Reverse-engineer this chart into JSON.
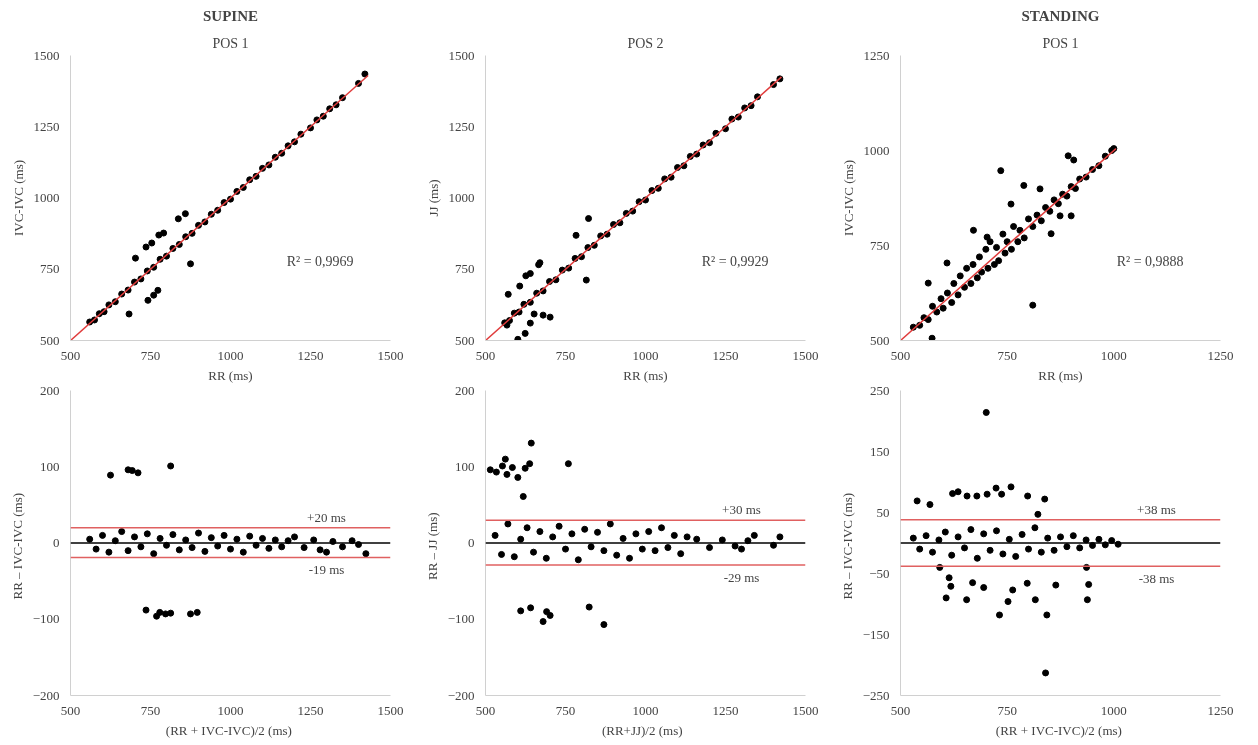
{
  "chart_data": [
    {
      "type": "scatter",
      "title": "SUPINE",
      "subtitle": "POS 1",
      "xlabel": "RR (ms)",
      "ylabel": "IVC-IVC (ms)",
      "marker": "circle",
      "grid": false,
      "xlim": [
        500,
        1500
      ],
      "xticks": [
        500,
        750,
        1000,
        1250,
        1500
      ],
      "ylim": [
        500,
        1500
      ],
      "yticks": [
        500,
        750,
        1000,
        1250,
        1500
      ],
      "annotations": [
        "R² = 0,9969"
      ],
      "series": [
        {
          "color": "#000000",
          "x": [
            560,
            575,
            590,
            605,
            620,
            640,
            660,
            680,
            700,
            720,
            740,
            760,
            780,
            800,
            820,
            840,
            860,
            880,
            900,
            920,
            940,
            960,
            980,
            1000,
            1020,
            1040,
            1060,
            1080,
            1100,
            1120,
            1140,
            1160,
            1180,
            1200,
            1220,
            1250,
            1270,
            1290,
            1310,
            1330,
            1350,
            1400,
            1420,
            703,
            736,
            754,
            776,
            791,
            837,
            859,
            875,
            683,
            742,
            760,
            773
          ],
          "values": [
            565,
            572,
            594,
            601,
            625,
            636,
            663,
            677,
            705,
            716,
            744,
            757,
            785,
            796,
            823,
            837,
            864,
            876,
            904,
            916,
            943,
            957,
            984,
            996,
            1023,
            1037,
            1064,
            1076,
            1104,
            1116,
            1143,
            1157,
            1183,
            1197,
            1224,
            1246,
            1274,
            1287,
            1313,
            1327,
            1352,
            1402,
            1435,
            789,
            828,
            842,
            870,
            877,
            927,
            945,
            769,
            593,
            641,
            659,
            676
          ]
        },
        {
          "type": "line",
          "marker": "none",
          "color": "#e03c3c",
          "x": [
            500,
            1430
          ],
          "values": [
            500,
            1430
          ]
        }
      ]
    },
    {
      "type": "scatter",
      "subtitle": "POS 2",
      "xlabel": "RR (ms)",
      "ylabel": "JJ (ms)",
      "marker": "circle",
      "grid": false,
      "xlim": [
        500,
        1500
      ],
      "xticks": [
        500,
        750,
        1000,
        1250,
        1500
      ],
      "ylim": [
        500,
        1500
      ],
      "yticks": [
        500,
        750,
        1000,
        1250,
        1500
      ],
      "annotations": [
        "R² = 0,9929"
      ],
      "series": [
        {
          "color": "#000000",
          "x": [
            560,
            575,
            590,
            605,
            620,
            640,
            660,
            680,
            700,
            720,
            740,
            760,
            780,
            800,
            820,
            840,
            860,
            880,
            900,
            920,
            940,
            960,
            980,
            1000,
            1020,
            1040,
            1060,
            1080,
            1100,
            1120,
            1140,
            1160,
            1180,
            1200,
            1220,
            1250,
            1270,
            1290,
            1310,
            1330,
            1350,
            1400,
            1420,
            571,
            607,
            626,
            640,
            666,
            670,
            783,
            822,
            815,
            652,
            680,
            702,
            601,
            624,
            640,
            567
          ],
          "values": [
            562,
            570,
            596,
            600,
            627,
            634,
            666,
            674,
            707,
            713,
            747,
            754,
            788,
            794,
            826,
            834,
            867,
            873,
            907,
            913,
            946,
            954,
            987,
            993,
            1026,
            1034,
            1067,
            1073,
            1107,
            1113,
            1146,
            1154,
            1186,
            1194,
            1227,
            1243,
            1277,
            1284,
            1316,
            1324,
            1355,
            1398,
            1418,
            662,
            691,
            727,
            735,
            766,
            773,
            869,
            928,
            712,
            593,
            589,
            582,
            504,
            525,
            561,
            554
          ]
        },
        {
          "type": "line",
          "marker": "none",
          "color": "#e03c3c",
          "x": [
            500,
            1425
          ],
          "values": [
            500,
            1425
          ]
        }
      ]
    },
    {
      "type": "scatter",
      "title": "STANDING",
      "subtitle": "POS 1",
      "xlabel": "RR (ms)",
      "ylabel": "IVC-IVC (ms)",
      "marker": "circle",
      "grid": false,
      "xlim": [
        500,
        1250
      ],
      "xticks": [
        500,
        750,
        1000,
        1250
      ],
      "ylim": [
        500,
        1250
      ],
      "yticks": [
        500,
        750,
        1000,
        1250
      ],
      "annotations": [
        "R² = 0,9888"
      ],
      "series": [
        {
          "color": "#000000",
          "x": [
            530,
            545,
            555,
            565,
            575,
            585,
            595,
            600,
            610,
            620,
            625,
            635,
            640,
            650,
            655,
            665,
            670,
            680,
            685,
            690,
            700,
            705,
            710,
            720,
            725,
            730,
            740,
            745,
            750,
            760,
            765,
            775,
            780,
            790,
            800,
            810,
            820,
            830,
            840,
            850,
            860,
            870,
            880,
            890,
            900,
            910,
            920,
            935,
            950,
            965,
            980,
            995,
            1000,
            735,
            893,
            906,
            789,
            827,
            810,
            853,
            900,
            874,
            565,
            609,
            671,
            574,
            703,
            759
          ],
          "values": [
            535,
            540,
            560,
            555,
            590,
            575,
            610,
            585,
            625,
            600,
            650,
            620,
            670,
            640,
            690,
            650,
            700,
            665,
            720,
            680,
            740,
            690,
            760,
            700,
            745,
            710,
            780,
            730,
            760,
            740,
            800,
            760,
            790,
            770,
            820,
            800,
            830,
            815,
            850,
            840,
            870,
            860,
            885,
            880,
            905,
            900,
            925,
            930,
            950,
            960,
            985,
            1000,
            1005,
            947,
            986,
            975,
            908,
            899,
            593,
            781,
            828,
            828,
            651,
            704,
            790,
            506,
            772,
            859
          ]
        },
        {
          "type": "line",
          "marker": "none",
          "color": "#e03c3c",
          "x": [
            500,
            1005
          ],
          "values": [
            500,
            1005
          ]
        }
      ]
    },
    {
      "type": "scatter",
      "xlabel": "(RR + IVC-IVC)/2  (ms)",
      "ylabel": "RR – IVC-IVC   (ms)",
      "marker": "circle",
      "grid": false,
      "xlim": [
        500,
        1500
      ],
      "xticks": [
        500,
        750,
        1000,
        1250,
        1500
      ],
      "ylim": [
        -200,
        200
      ],
      "yticks": [
        -200,
        -100,
        0,
        100,
        200
      ],
      "ref_lines": [
        {
          "axis": "y",
          "value": 20,
          "label": "+20 ms",
          "color": "#e06060"
        },
        {
          "axis": "y",
          "value": -19,
          "label": "-19 ms",
          "color": "#e06060"
        },
        {
          "axis": "y",
          "value": 0,
          "color": "#000000"
        }
      ],
      "series": [
        {
          "color": "#000000",
          "x": [
            560,
            580,
            600,
            620,
            640,
            660,
            680,
            700,
            720,
            740,
            760,
            780,
            800,
            820,
            840,
            860,
            880,
            900,
            920,
            940,
            960,
            980,
            1000,
            1020,
            1040,
            1060,
            1080,
            1100,
            1120,
            1140,
            1160,
            1180,
            1200,
            1230,
            1260,
            1280,
            1300,
            1320,
            1350,
            1380,
            1400,
            625,
            680,
            693,
            711,
            813,
            736,
            769,
            779,
            797,
            813,
            875,
            896,
            1423
          ],
          "values": [
            5,
            -8,
            10,
            -12,
            3,
            15,
            -10,
            8,
            -5,
            12,
            -14,
            6,
            -3,
            11,
            -9,
            4,
            -6,
            13,
            -11,
            7,
            -4,
            10,
            -8,
            5,
            -12,
            9,
            -3,
            6,
            -7,
            4,
            -5,
            3,
            8,
            -6,
            4,
            -9,
            -12,
            2,
            -5,
            3,
            -2,
            89,
            96,
            95,
            92,
            101,
            -88,
            -96,
            -91,
            -93,
            -92,
            -93,
            -91,
            -14
          ]
        }
      ]
    },
    {
      "type": "scatter",
      "xlabel": "(RR+JJ)/2   (ms)",
      "ylabel": "RR – JJ   (ms)",
      "marker": "circle",
      "grid": false,
      "xlim": [
        500,
        1500
      ],
      "xticks": [
        500,
        750,
        1000,
        1250,
        1500
      ],
      "ylim": [
        -200,
        200
      ],
      "yticks": [
        -200,
        -100,
        0,
        100,
        200
      ],
      "ref_lines": [
        {
          "axis": "y",
          "value": 30,
          "label": "+30 ms",
          "color": "#e06060"
        },
        {
          "axis": "y",
          "value": -29,
          "label": "-29 ms",
          "color": "#e06060"
        },
        {
          "axis": "y",
          "value": 0,
          "color": "#000000"
        }
      ],
      "series": [
        {
          "color": "#000000",
          "x": [
            530,
            550,
            570,
            590,
            610,
            630,
            650,
            670,
            690,
            710,
            730,
            750,
            770,
            790,
            810,
            830,
            850,
            870,
            890,
            910,
            930,
            950,
            970,
            990,
            1010,
            1030,
            1050,
            1070,
            1090,
            1110,
            1130,
            1160,
            1200,
            1240,
            1280,
            1300,
            1320,
            1340,
            1400,
            1420,
            515,
            534,
            553,
            562,
            567,
            584,
            601,
            624,
            638,
            643,
            618,
            759,
            610,
            641,
            680,
            702,
            691,
            824,
            870
          ],
          "values": [
            10,
            -15,
            25,
            -18,
            5,
            20,
            -12,
            15,
            -20,
            8,
            22,
            -8,
            12,
            -22,
            18,
            -5,
            14,
            -10,
            25,
            -16,
            6,
            -20,
            12,
            -8,
            15,
            -10,
            20,
            -6,
            10,
            -14,
            8,
            5,
            -6,
            4,
            -4,
            -8,
            3,
            10,
            -3,
            8,
            96,
            93,
            101,
            110,
            90,
            99,
            86,
            98,
            104,
            131,
            61,
            104,
            -89,
            -85,
            -103,
            -95,
            -90,
            -84,
            -107
          ]
        }
      ]
    },
    {
      "type": "scatter",
      "xlabel": "(RR + IVC-IVC)/2  (ms)",
      "ylabel": "RR – IVC-IVC   (ms)",
      "marker": "circle",
      "grid": false,
      "xlim": [
        500,
        1250
      ],
      "xticks": [
        500,
        750,
        1000,
        1250
      ],
      "ylim": [
        -250,
        250
      ],
      "yticks": [
        -250,
        -150,
        -50,
        50,
        150,
        250
      ],
      "ref_lines": [
        {
          "axis": "y",
          "value": 38,
          "label": "+38 ms",
          "color": "#e06060"
        },
        {
          "axis": "y",
          "value": -38,
          "label": "-38 ms",
          "color": "#e06060"
        },
        {
          "axis": "y",
          "value": 0,
          "color": "#000000"
        }
      ],
      "series": [
        {
          "color": "#000000",
          "x": [
            530,
            545,
            560,
            575,
            590,
            605,
            620,
            635,
            650,
            665,
            680,
            695,
            710,
            725,
            740,
            755,
            770,
            785,
            800,
            815,
            830,
            845,
            860,
            875,
            890,
            905,
            920,
            935,
            950,
            965,
            980,
            995,
            1010,
            701,
            840,
            539,
            569,
            622,
            635,
            656,
            679,
            703,
            724,
            737,
            759,
            798,
            838,
            822,
            592,
            614,
            618,
            607,
            655,
            669,
            695,
            732,
            752,
            763,
            797,
            816,
            843,
            864,
            936,
            941,
            938
          ],
          "values": [
            8,
            -10,
            12,
            -15,
            5,
            18,
            -20,
            10,
            -8,
            22,
            -25,
            15,
            -12,
            20,
            -18,
            6,
            -22,
            14,
            -10,
            25,
            -15,
            8,
            -12,
            10,
            -6,
            12,
            -8,
            5,
            -4,
            6,
            -3,
            4,
            -2,
            214,
            -213,
            69,
            63,
            81,
            84,
            77,
            77,
            80,
            90,
            80,
            92,
            77,
            72,
            47,
            -40,
            -57,
            -71,
            -90,
            -93,
            -65,
            -73,
            -118,
            -96,
            -77,
            -66,
            -93,
            -118,
            -69,
            -40,
            -68,
            -93
          ]
        }
      ]
    }
  ]
}
